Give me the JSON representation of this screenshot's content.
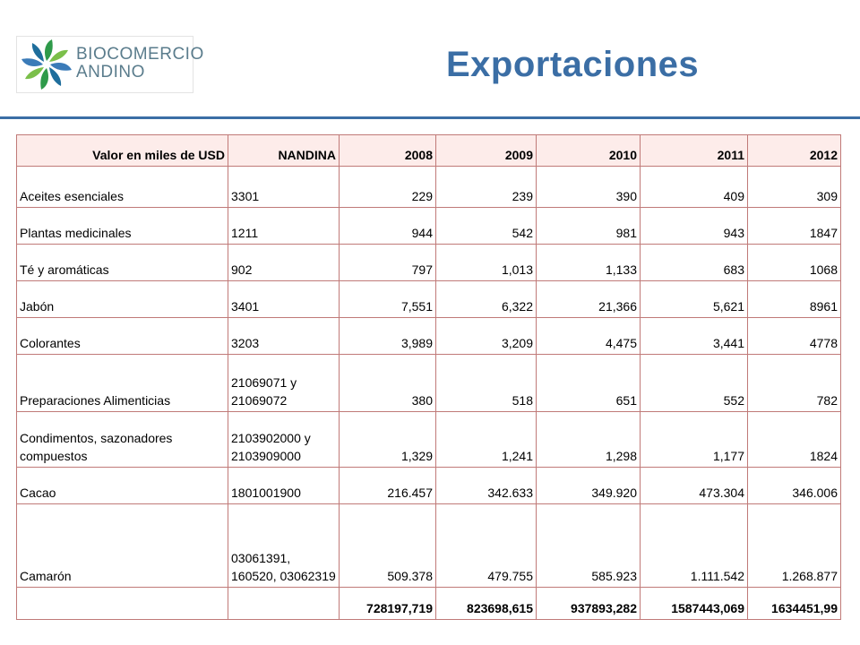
{
  "logo": {
    "line1": "BIOCOMERCIO",
    "line2": "ANDINO"
  },
  "title": "Exportaciones",
  "colors": {
    "title": "#3b6ea5",
    "rule": "#3b6ea5",
    "header_bg": "#fdecea",
    "border": "#c07a78"
  },
  "table": {
    "headers": [
      "Valor en miles de USD",
      "NANDINA",
      "2008",
      "2009",
      "2010",
      "2011",
      "2012"
    ],
    "rows": [
      [
        "Aceites esenciales",
        "3301",
        "229",
        "239",
        "390",
        "409",
        "309"
      ],
      [
        "Plantas medicinales",
        "1211",
        "944",
        "542",
        "981",
        "943",
        "1847"
      ],
      [
        "Té y aromáticas",
        "902",
        "797",
        "1,013",
        "1,133",
        "683",
        "1068"
      ],
      [
        "Jabón",
        "3401",
        "7,551",
        "6,322",
        "21,366",
        "5,621",
        "8961"
      ],
      [
        "Colorantes",
        "3203",
        "3,989",
        "3,209",
        "4,475",
        "3,441",
        "4778"
      ],
      [
        "Preparaciones Alimenticias",
        "21069071 y 21069072",
        "380",
        "518",
        "651",
        "552",
        "782"
      ],
      [
        "Condimentos, sazonadores compuestos",
        "2103902000 y 2103909000",
        "1,329",
        "1,241",
        "1,298",
        "1,177",
        "1824"
      ],
      [
        "Cacao",
        "1801001900",
        "216.457",
        "342.633",
        "349.920",
        "473.304",
        "346.006"
      ],
      [
        "Camarón",
        "03061391, 160520, 03062319",
        "509.378",
        "479.755",
        "585.923",
        "1.111.542",
        "1.268.877"
      ]
    ],
    "totals": [
      "",
      "",
      "728197,719",
      "823698,615",
      "937893,282",
      "1587443,069",
      "1634451,99"
    ]
  }
}
